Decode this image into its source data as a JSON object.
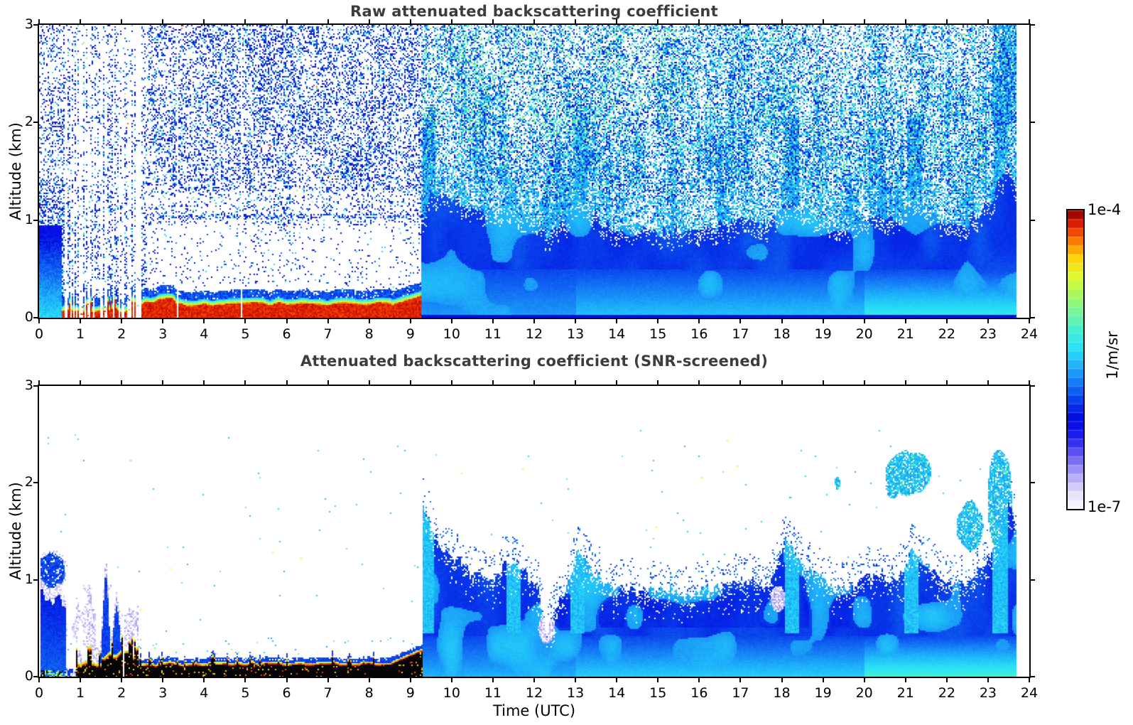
{
  "chart_data": {
    "type": "heatmap",
    "figure": "lidar attenuated backscatter time-height quicklook, two stacked panels with shared colorbar",
    "x": {
      "label": "Time (UTC)",
      "range": [
        0,
        24
      ],
      "ticks": [
        0,
        1,
        2,
        3,
        4,
        5,
        6,
        7,
        8,
        9,
        10,
        11,
        12,
        13,
        14,
        15,
        16,
        17,
        18,
        19,
        20,
        21,
        22,
        23,
        24
      ],
      "data_end_hour": 23.7
    },
    "y": {
      "label": "Altitude (km)",
      "range": [
        0,
        3
      ],
      "ticks": [
        0,
        1,
        2,
        3
      ]
    },
    "colorbar": {
      "scale": "log",
      "max_label": "1e-4",
      "min_label": "1e-7",
      "units": "1/m/sr",
      "segments": 34,
      "colormap_stops": [
        {
          "pos": 0.0,
          "color": "#fcfbff"
        },
        {
          "pos": 0.06,
          "color": "#e0dafc"
        },
        {
          "pos": 0.12,
          "color": "#a89cf6"
        },
        {
          "pos": 0.18,
          "color": "#6458f2"
        },
        {
          "pos": 0.24,
          "color": "#1e1ef0"
        },
        {
          "pos": 0.3,
          "color": "#0208e0"
        },
        {
          "pos": 0.36,
          "color": "#083ceb"
        },
        {
          "pos": 0.42,
          "color": "#1478f5"
        },
        {
          "pos": 0.48,
          "color": "#1eb4fa"
        },
        {
          "pos": 0.54,
          "color": "#28e1f5"
        },
        {
          "pos": 0.6,
          "color": "#46f0d2"
        },
        {
          "pos": 0.66,
          "color": "#78f596"
        },
        {
          "pos": 0.72,
          "color": "#aaf85a"
        },
        {
          "pos": 0.78,
          "color": "#e1fa2d"
        },
        {
          "pos": 0.84,
          "color": "#ffd20a"
        },
        {
          "pos": 0.88,
          "color": "#ff9600"
        },
        {
          "pos": 0.92,
          "color": "#f85000"
        },
        {
          "pos": 0.96,
          "color": "#d71400"
        },
        {
          "pos": 1.0,
          "color": "#800000"
        }
      ]
    },
    "panels": [
      {
        "title": "Raw attenuated backscattering coefficient",
        "ylabel": "Altitude (km)",
        "appearance": "dense blue noise speckle on white above; cyan-green speckle after 09 UTC; solid blue boundary layer after 09 UTC",
        "surface_layer": {
          "start_hour": 0.55,
          "end_hour": 9.25,
          "top_km_range": [
            0.05,
            0.2
          ],
          "appearance": "saturated dark red"
        },
        "streak_window_hours": [
          0.58,
          2.58
        ],
        "wide_gap_hours": [
          2.35,
          2.47
        ],
        "dropout_hours": [
          3.35,
          4.9
        ],
        "plume_hours": [
          9.45,
          13.1,
          18.25,
          21.2,
          23.3
        ],
        "cloud_top_km": {
          "hours": [
            9.3,
            9.5,
            9.8,
            10.2,
            10.6,
            11,
            11.4,
            11.8,
            12.1,
            12.3,
            12.7,
            13.05,
            13.4,
            13.8,
            14.3,
            14.8,
            15.3,
            15.8,
            16.3,
            16.8,
            17.3,
            17.7,
            18.1,
            18.5,
            19,
            19.5,
            20,
            20.4,
            20.8,
            21.15,
            21.5,
            22,
            22.4,
            22.8,
            23.15,
            23.45,
            23.7
          ],
          "km": [
            1.0,
            1.3,
            1.25,
            1.2,
            1.1,
            1.05,
            1.1,
            1.05,
            0.95,
            0.85,
            0.95,
            1.2,
            1.05,
            0.95,
            0.9,
            0.88,
            0.9,
            0.88,
            0.92,
            0.96,
            1.0,
            0.95,
            1.2,
            1.1,
            1.0,
            0.95,
            1.0,
            1.05,
            1.0,
            1.2,
            1.1,
            1.0,
            0.98,
            1.08,
            1.25,
            1.55,
            1.35
          ]
        }
      },
      {
        "title": "Attenuated backscattering coefficient (SNR-screened)",
        "xlabel": "Time (UTC)",
        "ylabel": "Altitude (km)",
        "appearance": "white where screened out; black saturated surface layer 0-9 UTC with red-orange-yellow fringe; blue cloud/aerosol field after 09 UTC",
        "surface_layer": {
          "start_hour": 0.45,
          "end_hour": 9.3,
          "top_km_range": [
            0.08,
            0.45
          ],
          "appearance": "saturated black with red/orange/yellow fringe and blue rim"
        },
        "left_mass_end_hour": 0.66,
        "low_level_plumes": [
          [
            1.62,
            1.05,
            0.1
          ],
          [
            1.88,
            0.72,
            0.12
          ]
        ],
        "dropout_hours": [
          2.0,
          2.05,
          3.3
        ],
        "plume_hours": [
          9.4,
          11.5,
          13.05,
          18.25,
          21.15,
          23.3
        ],
        "pale_spots": [
          [
            12.3,
            0.5,
            0.2,
            0.15
          ],
          [
            17.9,
            0.8,
            0.18,
            0.14
          ]
        ],
        "detached_clouds": [
          [
            21.1,
            2.1,
            0.55,
            0.22
          ],
          [
            20.7,
            1.95,
            0.15,
            0.1
          ],
          [
            22.55,
            1.55,
            0.3,
            0.25
          ],
          [
            23.3,
            1.85,
            0.3,
            0.5
          ],
          [
            19.35,
            2.0,
            0.07,
            0.06
          ]
        ],
        "cloud_top_km": {
          "hours": [
            9.3,
            9.5,
            9.8,
            10.2,
            10.6,
            11,
            11.4,
            11.8,
            12.1,
            12.3,
            12.7,
            13.05,
            13.4,
            13.8,
            14.3,
            14.8,
            15.3,
            15.8,
            16.3,
            16.8,
            17.3,
            17.7,
            18.1,
            18.5,
            19,
            19.5,
            20,
            20.4,
            20.8,
            21.15,
            21.5,
            22,
            22.4,
            22.8,
            23.15,
            23.45,
            23.7
          ],
          "km": [
            1.75,
            1.55,
            1.3,
            1.2,
            1.05,
            1.0,
            1.2,
            1.05,
            0.9,
            0.45,
            0.85,
            1.3,
            1.1,
            0.95,
            0.9,
            0.88,
            0.9,
            0.86,
            0.9,
            0.95,
            1.0,
            0.9,
            1.45,
            1.15,
            1.0,
            0.9,
            1.0,
            1.08,
            0.95,
            1.3,
            1.15,
            1.0,
            0.95,
            1.1,
            1.35,
            1.9,
            1.5
          ]
        }
      }
    ]
  }
}
